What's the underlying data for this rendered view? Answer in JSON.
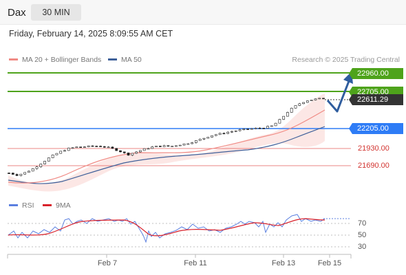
{
  "header": {
    "symbol": "Dax",
    "timeframe_label": "30 MIN"
  },
  "timestamp": "Friday, February 14, 2025 8:09:55 AM CET",
  "legend": {
    "ma20": "MA 20 + Bollinger Bands",
    "ma50": "MA 50",
    "credit": "Research © 2025 Trading Central",
    "rsi": "RSI",
    "ma9": "9MA"
  },
  "levels": {
    "r2": "22960.00",
    "r1": "22705.00",
    "last": "22611.29",
    "pivot": "22205.00",
    "s1": "21930.00",
    "s2": "21690.00"
  },
  "rsi_ticks": [
    "70",
    "50",
    "30"
  ],
  "xaxis": [
    "Feb 7",
    "Feb 11",
    "Feb 13",
    "Feb 15"
  ],
  "colors": {
    "resistance": "#4ea31b",
    "pivot": "#2e7cf6",
    "support": "#e45d5a",
    "ma20": "#f08a84",
    "ma50": "#3d5f99",
    "rsi": "#5a7fe0",
    "ma9": "#d8202a",
    "arrow": "#2f5d9e"
  },
  "chart_data": {
    "type": "candlestick",
    "price_axis_levels": [
      21690.0,
      21930.0,
      22205.0,
      22611.29,
      22705.0,
      22960.0
    ],
    "close_path": [
      21590,
      21560,
      21600,
      21660,
      21740,
      21820,
      21880,
      21925,
      21945,
      21950,
      21960,
      21955,
      21930,
      21890,
      21840,
      21880,
      21920,
      21950,
      21960,
      21955,
      21975,
      21995,
      22030,
      22070,
      22110,
      22130,
      22155,
      22175,
      22190,
      22200,
      22210,
      22235,
      22330,
      22450,
      22530,
      22580,
      22600,
      22611.29
    ],
    "projection": [
      22611.29,
      22450,
      22960
    ]
  }
}
